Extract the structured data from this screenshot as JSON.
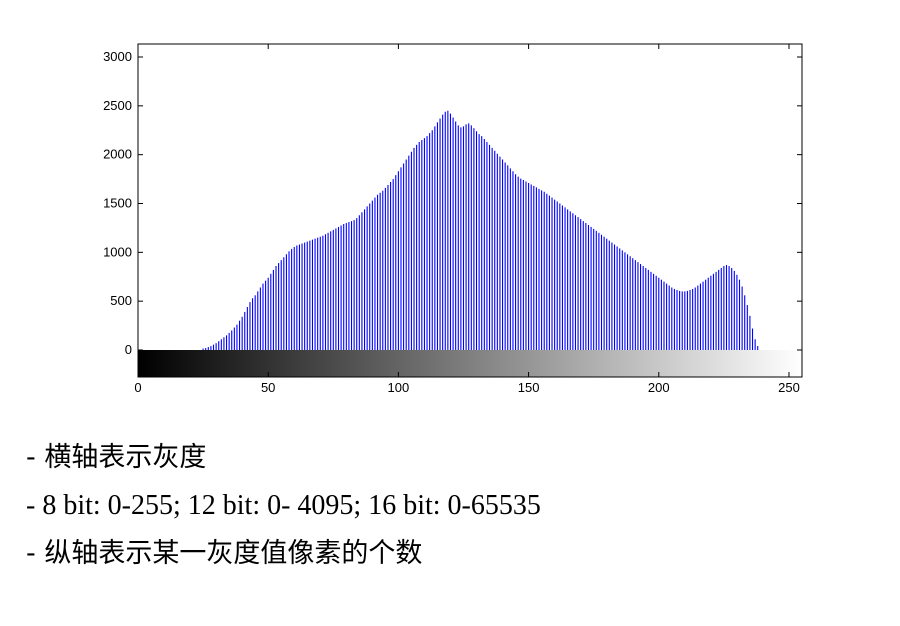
{
  "chart_data": {
    "type": "bar",
    "xlim": [
      0,
      255
    ],
    "ylim": [
      0,
      3000
    ],
    "xticks": [
      0,
      50,
      100,
      150,
      200,
      250
    ],
    "yticks": [
      0,
      500,
      1000,
      1500,
      2000,
      2500,
      3000
    ],
    "xtick_labels": [
      "0",
      "50",
      "100",
      "150",
      "200",
      "250"
    ],
    "ytick_labels": [
      "0",
      "500",
      "1000",
      "1500",
      "2000",
      "2500",
      "3000"
    ],
    "bar_color": "#0000ff",
    "colorbar": "grayscale 0-255 below x axis",
    "bins_start": 0,
    "values": [
      0,
      0,
      0,
      0,
      0,
      0,
      0,
      0,
      0,
      0,
      0,
      0,
      0,
      0,
      0,
      0,
      0,
      0,
      0,
      0,
      0,
      0,
      0,
      0,
      0,
      15,
      20,
      30,
      40,
      55,
      70,
      90,
      110,
      130,
      150,
      175,
      200,
      230,
      260,
      300,
      340,
      390,
      440,
      490,
      530,
      560,
      600,
      640,
      680,
      710,
      740,
      780,
      820,
      860,
      890,
      920,
      950,
      980,
      1010,
      1035,
      1055,
      1070,
      1080,
      1090,
      1100,
      1110,
      1120,
      1130,
      1140,
      1150,
      1160,
      1170,
      1185,
      1200,
      1215,
      1230,
      1245,
      1260,
      1275,
      1290,
      1300,
      1310,
      1320,
      1330,
      1350,
      1380,
      1410,
      1440,
      1470,
      1500,
      1530,
      1560,
      1590,
      1610,
      1630,
      1660,
      1690,
      1720,
      1750,
      1790,
      1830,
      1870,
      1910,
      1950,
      1990,
      2030,
      2070,
      2100,
      2130,
      2150,
      2170,
      2190,
      2220,
      2250,
      2290,
      2330,
      2370,
      2410,
      2440,
      2450,
      2420,
      2380,
      2340,
      2300,
      2280,
      2290,
      2310,
      2320,
      2300,
      2270,
      2240,
      2210,
      2190,
      2160,
      2130,
      2100,
      2070,
      2040,
      2010,
      1980,
      1950,
      1920,
      1890,
      1860,
      1830,
      1800,
      1775,
      1755,
      1740,
      1725,
      1710,
      1695,
      1680,
      1665,
      1650,
      1635,
      1620,
      1600,
      1580,
      1560,
      1540,
      1520,
      1500,
      1480,
      1460,
      1440,
      1420,
      1400,
      1380,
      1360,
      1340,
      1320,
      1300,
      1280,
      1260,
      1240,
      1220,
      1200,
      1180,
      1160,
      1140,
      1120,
      1100,
      1080,
      1060,
      1040,
      1020,
      1000,
      980,
      960,
      940,
      920,
      900,
      880,
      860,
      840,
      820,
      800,
      780,
      760,
      740,
      720,
      700,
      680,
      660,
      640,
      625,
      615,
      605,
      600,
      600,
      605,
      615,
      625,
      640,
      660,
      680,
      700,
      720,
      740,
      760,
      780,
      800,
      820,
      840,
      860,
      870,
      860,
      840,
      810,
      770,
      720,
      650,
      560,
      460,
      350,
      220,
      110,
      40,
      0,
      0,
      0,
      0,
      0,
      0,
      0,
      0,
      0,
      0,
      0,
      0,
      0,
      0,
      0
    ]
  },
  "notes": [
    "- 横轴表示灰度",
    "- 8 bit: 0-255; 12 bit: 0- 4095; 16 bit: 0-65535",
    "- 纵轴表示某一灰度值像素的个数"
  ]
}
